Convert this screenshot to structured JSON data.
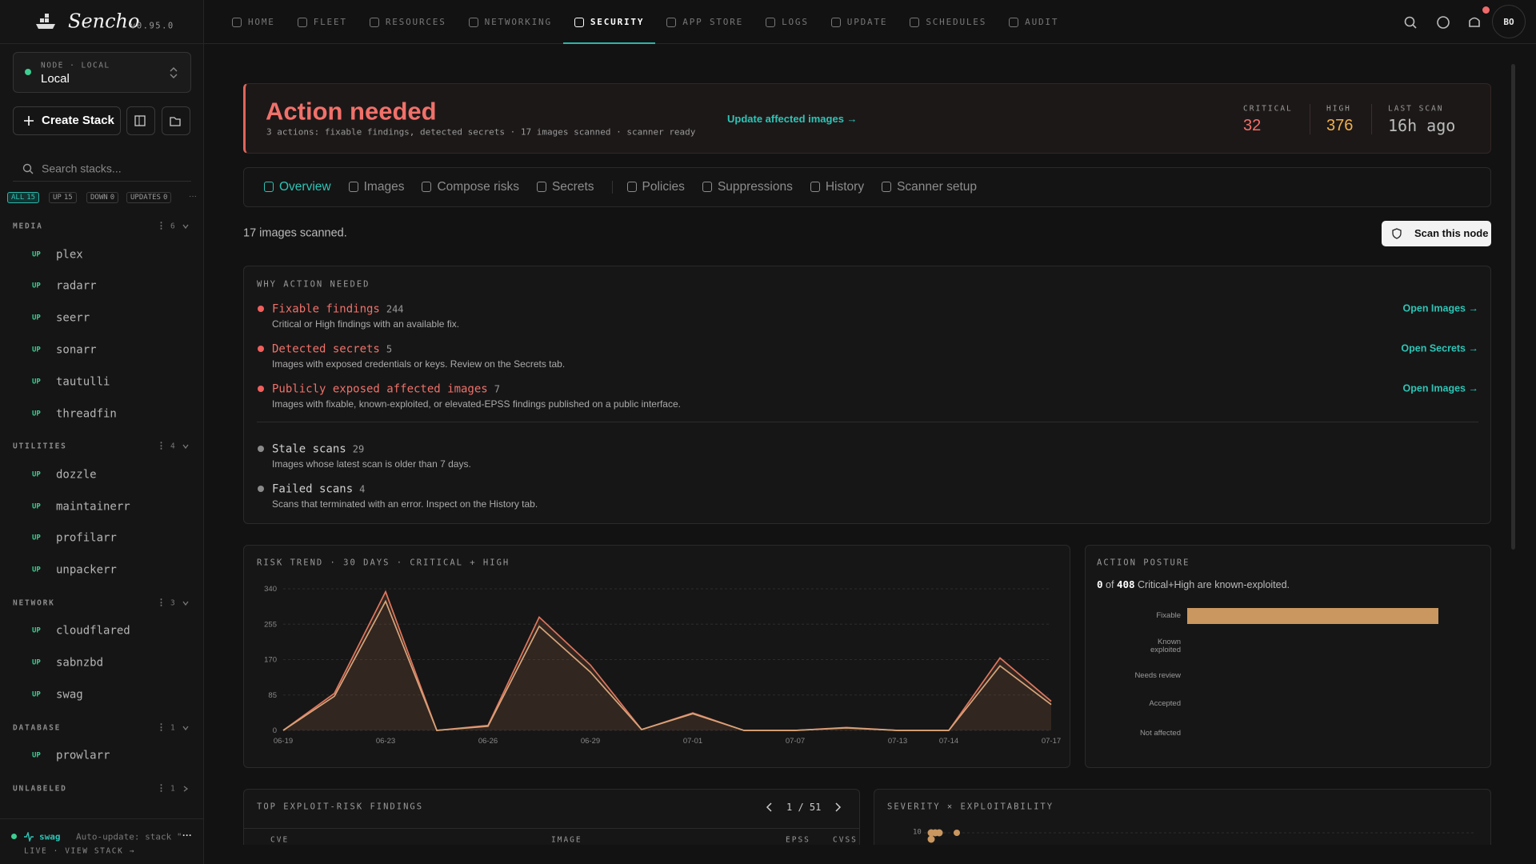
{
  "brand": {
    "name": "Sencho",
    "version": "v0.95.0"
  },
  "nav": [
    "HOME",
    "FLEET",
    "RESOURCES",
    "NETWORKING",
    "SECURITY",
    "APP STORE",
    "LOGS",
    "UPDATE",
    "SCHEDULES",
    "AUDIT"
  ],
  "user_initials": "BO",
  "sidebar": {
    "node_label": "NODE · LOCAL",
    "node_name": "Local",
    "create": "Create Stack",
    "search_placeholder": "Search stacks...",
    "filters": [
      {
        "label": "ALL",
        "count": 15
      },
      {
        "label": "UP",
        "count": 15
      },
      {
        "label": "DOWN",
        "count": 0
      },
      {
        "label": "UPDATES",
        "count": 0
      }
    ],
    "groups": [
      {
        "name": "MEDIA",
        "count": 6,
        "stacks": [
          {
            "status": "UP",
            "name": "plex"
          },
          {
            "status": "UP",
            "name": "radarr"
          },
          {
            "status": "UP",
            "name": "seerr"
          },
          {
            "status": "UP",
            "name": "sonarr"
          },
          {
            "status": "UP",
            "name": "tautulli"
          },
          {
            "status": "UP",
            "name": "threadfin"
          }
        ]
      },
      {
        "name": "UTILITIES",
        "count": 4,
        "stacks": [
          {
            "status": "UP",
            "name": "dozzle"
          },
          {
            "status": "UP",
            "name": "maintainerr"
          },
          {
            "status": "UP",
            "name": "profilarr"
          },
          {
            "status": "UP",
            "name": "unpackerr"
          }
        ]
      },
      {
        "name": "NETWORK",
        "count": 3,
        "stacks": [
          {
            "status": "UP",
            "name": "cloudflared"
          },
          {
            "status": "UP",
            "name": "sabnzbd"
          },
          {
            "status": "UP",
            "name": "swag"
          }
        ]
      },
      {
        "name": "DATABASE",
        "count": 1,
        "stacks": [
          {
            "status": "UP",
            "name": "prowlarr"
          }
        ]
      },
      {
        "name": "UNLABELED",
        "count": 1,
        "stacks": []
      }
    ],
    "footer": {
      "stack": "swag",
      "message": "Auto-update: stack \"",
      "link": "LIVE · VIEW STACK →"
    }
  },
  "banner": {
    "title": "Action needed",
    "subtitle": "3 actions: fixable findings, detected secrets · 17 images scanned · scanner ready",
    "link": "Update affected images →",
    "stats": [
      {
        "label": "CRITICAL",
        "value": 32
      },
      {
        "label": "HIGH",
        "value": 376
      },
      {
        "label": "LAST SCAN",
        "value": "16h ago"
      }
    ]
  },
  "tabs": [
    "Overview",
    "Images",
    "Compose risks",
    "Secrets",
    "Policies",
    "Suppressions",
    "History",
    "Scanner setup"
  ],
  "status": "17 images scanned.",
  "scan_button": "Scan this node",
  "why": {
    "title": "WHY ACTION NEEDED",
    "items": [
      {
        "title": "Fixable findings",
        "count": 244,
        "desc": "Critical or High findings with an available fix.",
        "link": "Open Images →"
      },
      {
        "title": "Detected secrets",
        "count": 5,
        "desc": "Images with exposed credentials or keys. Review on the Secrets tab.",
        "link": "Open Secrets →"
      },
      {
        "title": "Publicly exposed affected images",
        "count": 7,
        "desc": "Images with fixable, known-exploited, or elevated-EPSS findings published on a public interface.",
        "link": "Open Images →"
      }
    ],
    "other": [
      {
        "title": "Stale scans",
        "count": 29,
        "desc": "Images whose latest scan is older than 7 days."
      },
      {
        "title": "Failed scans",
        "count": 4,
        "desc": "Scans that terminated with an error. Inspect on the History tab."
      }
    ]
  },
  "risk_trend": {
    "type": "line",
    "title": "RISK TREND · 30 DAYS · CRITICAL + HIGH",
    "categories": [
      "06-19",
      null,
      "06-23",
      null,
      "06-26",
      null,
      "06-29",
      null,
      "07-01",
      null,
      "07-07",
      null,
      "07-13",
      "07-14",
      null,
      "07-17"
    ],
    "series": [
      {
        "color": "#e0765e",
        "values": [
          0,
          89,
          333,
          0,
          12,
          272,
          157,
          2,
          42,
          0,
          0,
          7,
          0,
          0,
          174,
          70
        ]
      },
      {
        "color": "#d6a57a",
        "values": [
          0,
          82,
          310,
          0,
          10,
          250,
          140,
          2,
          40,
          0,
          0,
          6,
          0,
          0,
          155,
          62
        ]
      }
    ],
    "ylim": [
      0,
      340
    ],
    "yticks": [
      0,
      85,
      170,
      255,
      340
    ],
    "grid": true
  },
  "posture": {
    "type": "bar",
    "title": "ACTION POSTURE",
    "exploited": 0,
    "of": "of",
    "total": 408,
    "summary": "Critical+High are known-exploited.",
    "categories": [
      "Fixable",
      "Known exploited",
      "Needs review",
      "Accepted",
      "Not affected"
    ],
    "values": [
      244,
      0,
      0,
      0,
      0
    ],
    "color": "#c9975f"
  },
  "findings": {
    "title": "TOP EXPLOIT-RISK FINDINGS",
    "pagination": "1 / 51",
    "columns": [
      "CVE",
      "IMAGE",
      "EPSS",
      "CVSS"
    ]
  },
  "severity": {
    "title": "SEVERITY × EXPLOITABILITY",
    "yticks": [
      10
    ]
  }
}
